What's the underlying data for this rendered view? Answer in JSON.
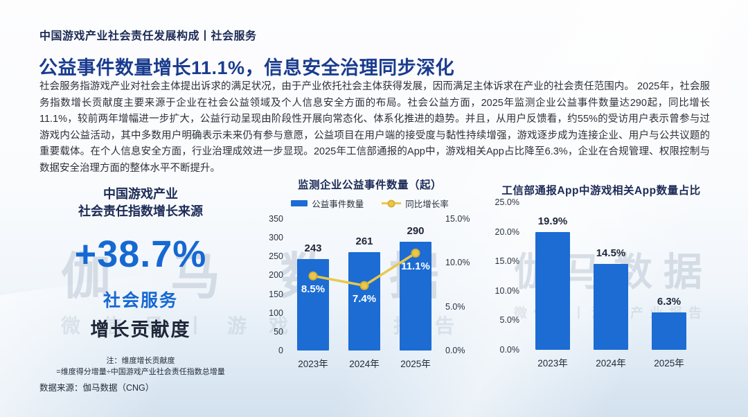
{
  "page": {
    "kicker": "中国游戏产业社会责任发展构成丨社会服务",
    "headline": "公益事件数量增长11.1%，信息安全治理同步深化",
    "body": "社会服务指游戏产业对社会主体提出诉求的满足状况，由于产业依托社会主体获得发展，因而满足主体诉求在产业的社会责任范围内。 2025年，社会服务指数增长贡献度主要来源于企业在社会公益领域及个人信息安全方面的布局。社会公益方面，2025年监测企业公益事件数量达290起，同比增长11.1%，较前两年增幅进一步扩大，公益行动呈现由阶段性开展向常态化、体系化推进的趋势。并且，从用户反馈看，约55%的受访用户表示曾参与过游戏内公益活动，其中多数用户明确表示未来仍有参与意愿，公益项目在用户端的接受度与黏性持续增强，游戏逐步成为连接企业、用户与公共议题的重要载体。在个人信息安全方面，行业治理成效进一步显现。2025年工信部通报的App中，游戏相关App占比降至6.3%，企业在合规管理、权限控制与数据安全治理方面的整体水平不断提升。",
    "source": "数据来源：伽马数据（CNG）",
    "watermark": "伽马数据",
    "watermark_sub": "微信号丨游戏产业报告"
  },
  "stat_panel": {
    "title_line1": "中国游戏产业",
    "title_line2": "社会责任指数增长来源",
    "value": "+38.7%",
    "label_blue": "社会服务",
    "label_dark": "增长贡献度",
    "note_line1": "注：维度增长贡献度",
    "note_line2": "=维度得分增量÷中国游戏产业社会责任指数总增量"
  },
  "colors": {
    "accent_blue": "#1668d2",
    "bar_blue": "#1c6cd3",
    "line_yellow": "#e9c84b",
    "line_marker_stroke": "#d8b02f",
    "headline_blue": "#1a3c8f",
    "dark_navy": "#1c2b56"
  },
  "chart_data": [
    {
      "type": "bar+line",
      "title": "监测企业公益事件数量（起）",
      "categories": [
        "2023年",
        "2024年",
        "2025年"
      ],
      "series": [
        {
          "name": "公益事件数量",
          "chart": "bar",
          "axis": "left",
          "values": [
            243,
            261,
            290
          ],
          "value_labels": [
            "243",
            "261",
            "290"
          ]
        },
        {
          "name": "同比增长率",
          "chart": "line",
          "axis": "right",
          "values": [
            8.5,
            7.4,
            11.1
          ],
          "value_labels": [
            "8.5%",
            "7.4%",
            "11.1%"
          ]
        }
      ],
      "left_axis": {
        "max": 350,
        "ticks": [
          0,
          50,
          100,
          150,
          200,
          250,
          300,
          350
        ],
        "labels": [
          "0",
          "50",
          "100",
          "150",
          "200",
          "250",
          "300",
          "350"
        ]
      },
      "right_axis": {
        "max": 15,
        "ticks": [
          0,
          5,
          10,
          15
        ],
        "labels": [
          "0.0%",
          "5.0%",
          "10.0%",
          "15.0%"
        ]
      },
      "legend_position": "top",
      "grid": false
    },
    {
      "type": "bar",
      "title": "工信部通报App中游戏相关App数量占比",
      "categories": [
        "2023年",
        "2024年",
        "2025年"
      ],
      "values": [
        19.9,
        14.5,
        6.3
      ],
      "value_labels": [
        "19.9%",
        "14.5%",
        "6.3%"
      ],
      "yaxis": {
        "max": 25,
        "ticks": [
          0,
          5,
          10,
          15,
          20,
          25
        ],
        "labels": [
          "0.0%",
          "5.0%",
          "10.0%",
          "15.0%",
          "20.0%",
          "25.0%"
        ]
      },
      "grid": false
    }
  ]
}
